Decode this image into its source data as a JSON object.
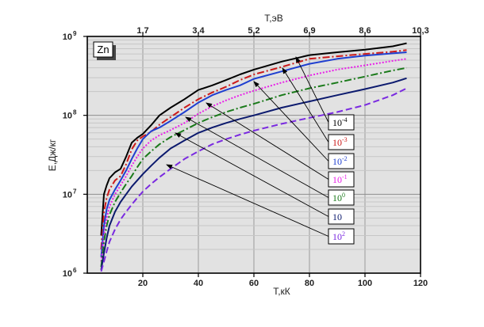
{
  "chart_data": {
    "type": "line",
    "xlabel": "T,кК",
    "x2label": "T,эВ",
    "ylabel": "E,Дж/кг",
    "xlim": [
      0,
      120
    ],
    "ylim": [
      1000000,
      1000000000
    ],
    "log_y": true,
    "grid": true,
    "x_ticks": [
      "20",
      "40",
      "60",
      "80",
      "100",
      "120"
    ],
    "x2_ticks": [
      "1,7",
      "3,4",
      "5,2",
      "6,9",
      "8,6",
      "10,3"
    ],
    "y_ticks": [
      {
        "base": "10",
        "exp": "6"
      },
      {
        "base": "10",
        "exp": "7"
      },
      {
        "base": "10",
        "exp": "8"
      },
      {
        "base": "10",
        "exp": "9"
      }
    ],
    "element_label": "Zn",
    "series": [
      {
        "name_base": "10",
        "name_exp": "-4",
        "color": "#000000",
        "style": "solid",
        "x": [
          5,
          6,
          7,
          8,
          10,
          12,
          14,
          16,
          18,
          20,
          23,
          26,
          30,
          35,
          40,
          45,
          50,
          55,
          60,
          70,
          80,
          90,
          100,
          110,
          115
        ],
        "y": [
          3000000.0,
          10000000.0,
          13000000.0,
          16000000.0,
          19000000.0,
          21000000.0,
          30000000.0,
          45000000.0,
          52000000.0,
          58000000.0,
          75000000.0,
          100000000.0,
          125000000.0,
          160000000.0,
          210000000.0,
          240000000.0,
          280000000.0,
          330000000.0,
          380000000.0,
          480000000.0,
          580000000.0,
          630000000.0,
          680000000.0,
          750000000.0,
          820000000.0
        ]
      },
      {
        "name_base": "10",
        "name_exp": "-3",
        "color": "#cc1a1a",
        "style": "dashdot",
        "x": [
          5,
          6,
          7,
          8,
          10,
          12,
          14,
          16,
          18,
          20,
          23,
          26,
          30,
          35,
          40,
          45,
          50,
          55,
          60,
          70,
          80,
          90,
          100,
          110,
          115
        ],
        "y": [
          2000000.0,
          6000000.0,
          9000000.0,
          11500000.0,
          15000000.0,
          17000000.0,
          24000000.0,
          37000000.0,
          48000000.0,
          54000000.0,
          62000000.0,
          76000000.0,
          95000000.0,
          125000000.0,
          160000000.0,
          195000000.0,
          230000000.0,
          280000000.0,
          330000000.0,
          410000000.0,
          520000000.0,
          560000000.0,
          600000000.0,
          640000000.0,
          670000000.0
        ]
      },
      {
        "name_base": "10",
        "name_exp": "-2",
        "color": "#1f3fd0",
        "style": "solid",
        "x": [
          5,
          6,
          7,
          8,
          10,
          12,
          14,
          16,
          18,
          20,
          23,
          26,
          30,
          35,
          40,
          45,
          50,
          55,
          60,
          70,
          80,
          90,
          100,
          110,
          115
        ],
        "y": [
          1600000.0,
          4000000.0,
          6500000.0,
          8500000.0,
          11500000.0,
          15000000.0,
          20000000.0,
          28000000.0,
          38000000.0,
          50000000.0,
          63000000.0,
          70000000.0,
          85000000.0,
          110000000.0,
          145000000.0,
          180000000.0,
          210000000.0,
          240000000.0,
          290000000.0,
          360000000.0,
          450000000.0,
          520000000.0,
          570000000.0,
          610000000.0,
          630000000.0
        ]
      },
      {
        "name_base": "10",
        "name_exp": "-1",
        "color": "#e820e8",
        "style": "dotted",
        "x": [
          5,
          6,
          7,
          8,
          10,
          12,
          14,
          16,
          18,
          20,
          23,
          26,
          30,
          35,
          40,
          45,
          50,
          55,
          60,
          70,
          80,
          90,
          100,
          110,
          115
        ],
        "y": [
          1400000.0,
          3000000.0,
          5000000.0,
          7000000.0,
          10000000.0,
          13000000.0,
          17000000.0,
          23000000.0,
          30000000.0,
          38000000.0,
          48000000.0,
          56000000.0,
          65000000.0,
          80000000.0,
          105000000.0,
          130000000.0,
          155000000.0,
          180000000.0,
          205000000.0,
          260000000.0,
          320000000.0,
          380000000.0,
          430000000.0,
          490000000.0,
          520000000.0
        ]
      },
      {
        "name_base": "10",
        "name_exp": "0",
        "color": "#1a7a1a",
        "style": "dashdot",
        "x": [
          5,
          6,
          7,
          8,
          10,
          12,
          14,
          16,
          18,
          20,
          23,
          26,
          30,
          35,
          40,
          45,
          50,
          55,
          60,
          70,
          80,
          90,
          100,
          110,
          115
        ],
        "y": [
          1200000.0,
          2500000.0,
          4000000.0,
          5500000.0,
          8000000.0,
          10500000.0,
          13500000.0,
          17000000.0,
          22000000.0,
          28000000.0,
          35000000.0,
          43000000.0,
          53000000.0,
          65000000.0,
          80000000.0,
          95000000.0,
          110000000.0,
          125000000.0,
          140000000.0,
          180000000.0,
          220000000.0,
          260000000.0,
          310000000.0,
          370000000.0,
          400000000.0
        ]
      },
      {
        "name_base": "10",
        "name_exp": "",
        "color": "#0c1a6e",
        "style": "solid",
        "x": [
          5,
          6,
          7,
          8,
          10,
          12,
          14,
          16,
          18,
          20,
          23,
          26,
          30,
          35,
          40,
          45,
          50,
          55,
          60,
          70,
          80,
          90,
          100,
          110,
          115
        ],
        "y": [
          1100000.0,
          1800000.0,
          2800000.0,
          4000000.0,
          6000000.0,
          8000000.0,
          10000000.0,
          12500000.0,
          15000000.0,
          18000000.0,
          23000000.0,
          29000000.0,
          38000000.0,
          48000000.0,
          60000000.0,
          70000000.0,
          80000000.0,
          90000000.0,
          100000000.0,
          125000000.0,
          150000000.0,
          180000000.0,
          215000000.0,
          260000000.0,
          295000000.0
        ]
      },
      {
        "name_base": "10",
        "name_exp": "2",
        "color": "#7a2ae0",
        "style": "dashed",
        "x": [
          5,
          6,
          7,
          8,
          10,
          12,
          14,
          16,
          18,
          20,
          23,
          26,
          30,
          35,
          40,
          45,
          50,
          55,
          60,
          70,
          80,
          90,
          100,
          110,
          115
        ],
        "y": [
          1050000.0,
          1400000.0,
          1900000.0,
          2500000.0,
          3600000.0,
          4800000.0,
          6000000.0,
          7400000.0,
          9000000.0,
          10800000.0,
          13500000.0,
          16500000.0,
          21000000.0,
          28000000.0,
          35000000.0,
          43000000.0,
          50000000.0,
          57000000.0,
          64000000.0,
          78000000.0,
          93000000.0,
          110000000.0,
          135000000.0,
          180000000.0,
          220000000.0
        ]
      }
    ]
  }
}
